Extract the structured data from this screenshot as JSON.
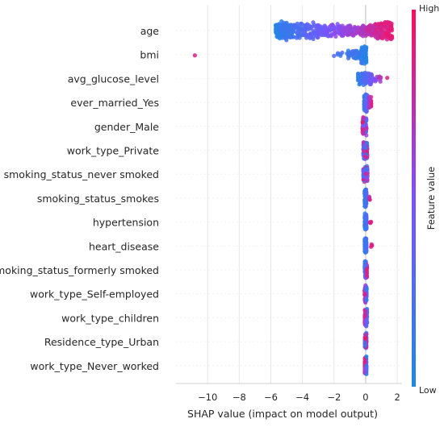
{
  "chart_data": {
    "type": "scatter",
    "subtype": "shap-beeswarm-summary",
    "xlabel": "SHAP value (impact on model output)",
    "xlim": [
      -12,
      2.3
    ],
    "xticks": [
      -10,
      -8,
      -6,
      -4,
      -2,
      0,
      2
    ],
    "xtick_labels": [
      "−10",
      "−8",
      "−6",
      "−4",
      "−2",
      "0",
      "2"
    ],
    "grid": "vertical",
    "colorbar": {
      "title": "Feature value",
      "high_label": "High",
      "low_label": "Low",
      "low_color": "#1e88e5",
      "mid_color": "#7c52ff",
      "high_color": "#ff0d57",
      "placement": "right"
    },
    "features": [
      {
        "name": "age",
        "color_trend": "increasing",
        "clusters": [
          [
            -5.7,
            -4.5,
            140,
            0.42
          ],
          [
            -4.5,
            -3.0,
            90,
            0.38
          ],
          [
            -3.0,
            -1.5,
            90,
            0.3
          ],
          [
            -1.5,
            -0.2,
            80,
            0.25
          ],
          [
            -0.2,
            0.6,
            120,
            0.24
          ],
          [
            0.6,
            1.7,
            110,
            0.42
          ]
        ]
      },
      {
        "name": "bmi",
        "color_trend": "decreasing",
        "clusters": [
          [
            -10.9,
            -10.7,
            1,
            0.1
          ],
          [
            -2.2,
            -1.2,
            6,
            0.12
          ],
          [
            -1.2,
            -0.3,
            40,
            0.22
          ],
          [
            -0.3,
            0.05,
            120,
            0.4
          ]
        ]
      },
      {
        "name": "avg_glucose_level",
        "color_trend": "increasing",
        "clusters": [
          [
            -0.5,
            -0.05,
            70,
            0.28
          ],
          [
            -0.05,
            0.4,
            60,
            0.3
          ],
          [
            0.4,
            1.0,
            15,
            0.15
          ],
          [
            1.3,
            1.5,
            1,
            0.05
          ]
        ]
      },
      {
        "name": "ever_married_Yes",
        "color_trend": "increasing",
        "clusters": [
          [
            -0.1,
            0.1,
            110,
            0.42
          ],
          [
            0.2,
            0.35,
            30,
            0.3
          ]
        ]
      },
      {
        "name": "gender_Male",
        "color_trend": "mixed",
        "clusters": [
          [
            -0.2,
            0.05,
            100,
            0.4
          ]
        ]
      },
      {
        "name": "work_type_Private",
        "color_trend": "mixed",
        "clusters": [
          [
            -0.15,
            0.1,
            100,
            0.38
          ]
        ]
      },
      {
        "name": "smoking_status_never smoked",
        "color_trend": "mixed",
        "clusters": [
          [
            -0.15,
            0.12,
            100,
            0.35
          ]
        ]
      },
      {
        "name": "smoking_status_smokes",
        "color_trend": "increasing",
        "clusters": [
          [
            -0.06,
            0.05,
            100,
            0.4
          ],
          [
            0.2,
            0.32,
            4,
            0.1
          ]
        ]
      },
      {
        "name": "hypertension",
        "color_trend": "increasing",
        "clusters": [
          [
            -0.06,
            0.05,
            100,
            0.4
          ],
          [
            0.25,
            0.35,
            4,
            0.1
          ]
        ]
      },
      {
        "name": "heart_disease",
        "color_trend": "increasing",
        "clusters": [
          [
            -0.06,
            0.05,
            100,
            0.4
          ],
          [
            0.3,
            0.4,
            4,
            0.1
          ]
        ]
      },
      {
        "name": "smoking_status_formerly smoked",
        "color_trend": "increasing",
        "clusters": [
          [
            -0.06,
            0.08,
            100,
            0.4
          ]
        ]
      },
      {
        "name": "work_type_Self-employed",
        "color_trend": "decreasing",
        "clusters": [
          [
            -0.06,
            0.06,
            100,
            0.4
          ]
        ]
      },
      {
        "name": "work_type_children",
        "color_trend": "decreasing",
        "clusters": [
          [
            -0.05,
            0.1,
            100,
            0.4
          ]
        ]
      },
      {
        "name": "Residence_type_Urban",
        "color_trend": "mixed",
        "clusters": [
          [
            -0.05,
            0.05,
            100,
            0.4
          ]
        ]
      },
      {
        "name": "work_type_Never_worked",
        "color_trend": "decreasing",
        "clusters": [
          [
            -0.05,
            0.05,
            100,
            0.4
          ]
        ]
      }
    ]
  }
}
